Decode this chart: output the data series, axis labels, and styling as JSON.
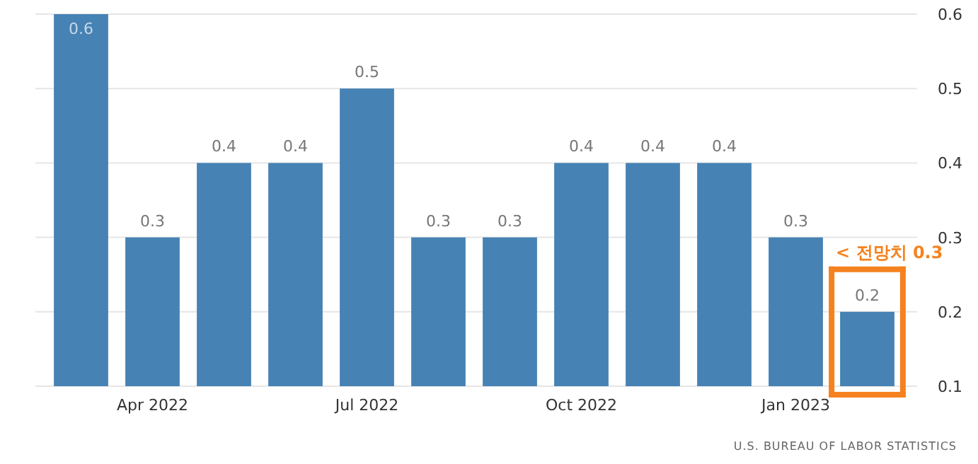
{
  "chart_data": {
    "type": "bar",
    "categories": [
      null,
      "Apr 2022",
      null,
      null,
      "Jul 2022",
      null,
      null,
      "Oct 2022",
      null,
      null,
      "Jan 2023",
      null
    ],
    "values": [
      0.6,
      0.3,
      0.4,
      0.4,
      0.5,
      0.3,
      0.3,
      0.4,
      0.4,
      0.4,
      0.3,
      0.2
    ],
    "color": "#4682b4",
    "ylim": [
      0.1,
      0.6
    ],
    "yticks": [
      0.1,
      0.2,
      0.3,
      0.4,
      0.5,
      0.6
    ],
    "grid": "y",
    "data_labels": true,
    "annotations": [
      "< 전망치 0.3",
      "U.S. BUREAU OF LABOR STATISTICS"
    ]
  }
}
